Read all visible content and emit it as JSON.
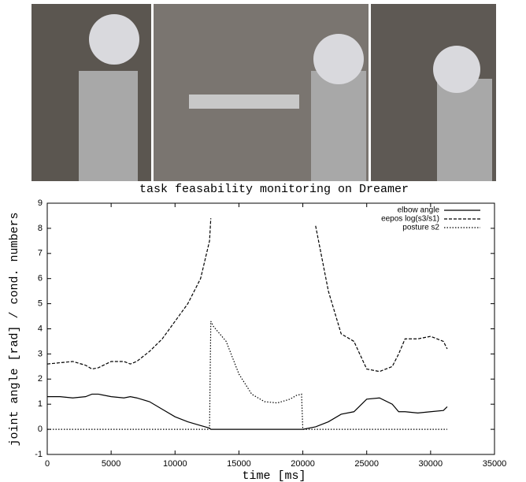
{
  "chart_data": {
    "type": "line",
    "title": "task feasability monitoring on Dreamer",
    "xlabel": "time [ms]",
    "ylabel": "joint angle [rad] / cond. numbers",
    "x": [
      0,
      1000,
      2000,
      3000,
      3500,
      4000,
      5000,
      6000,
      6500,
      7000,
      8000,
      9000,
      10000,
      11000,
      12000,
      12700,
      12800,
      13000,
      14000,
      15000,
      16000,
      17000,
      18000,
      19000,
      19500,
      19900,
      20000,
      21000,
      22000,
      23000,
      24000,
      25000,
      26000,
      27000,
      27500,
      28000,
      29000,
      30000,
      31000,
      31300
    ],
    "series": [
      {
        "name": "elbow angle",
        "color": "#000000",
        "style": "solid",
        "values": [
          1.3,
          1.3,
          1.25,
          1.3,
          1.4,
          1.4,
          1.3,
          1.25,
          1.3,
          1.25,
          1.1,
          0.8,
          0.5,
          0.3,
          0.15,
          0.05,
          0,
          0,
          0,
          0,
          0,
          0,
          0,
          0,
          0,
          0,
          0,
          0.1,
          0.3,
          0.6,
          0.7,
          1.2,
          1.25,
          1.0,
          0.7,
          0.7,
          0.65,
          0.7,
          0.75,
          0.9
        ]
      },
      {
        "name": "eepos log(s3/s1)",
        "color": "#000000",
        "style": "dashed",
        "values": [
          2.6,
          2.65,
          2.7,
          2.55,
          2.4,
          2.45,
          2.7,
          2.7,
          2.6,
          2.7,
          3.1,
          3.6,
          4.3,
          5.0,
          6.0,
          7.5,
          8.4,
          null,
          null,
          null,
          null,
          null,
          null,
          null,
          null,
          null,
          null,
          8.1,
          5.5,
          3.8,
          3.5,
          2.4,
          2.3,
          2.5,
          3.0,
          3.6,
          3.6,
          3.7,
          3.5,
          3.2
        ]
      },
      {
        "name": "posture s2",
        "color": "#000000",
        "style": "dotted",
        "values": [
          0,
          0,
          0,
          0,
          0,
          0,
          0,
          0,
          0,
          0,
          0,
          0,
          0,
          0,
          0,
          0,
          4.3,
          4.1,
          3.5,
          2.2,
          1.4,
          1.1,
          1.05,
          1.2,
          1.35,
          1.4,
          0,
          0,
          0,
          0,
          0,
          0,
          0,
          0,
          0,
          0,
          0,
          0,
          0,
          0
        ]
      }
    ],
    "xlim": [
      0,
      35000
    ],
    "xticks": [
      0,
      5000,
      10000,
      15000,
      20000,
      25000,
      30000,
      35000
    ],
    "ylim": [
      -1,
      9
    ],
    "yticks": [
      -1,
      0,
      1,
      2,
      3,
      4,
      5,
      6,
      7,
      8,
      9
    ],
    "legend": "top-right",
    "grid": false
  }
}
